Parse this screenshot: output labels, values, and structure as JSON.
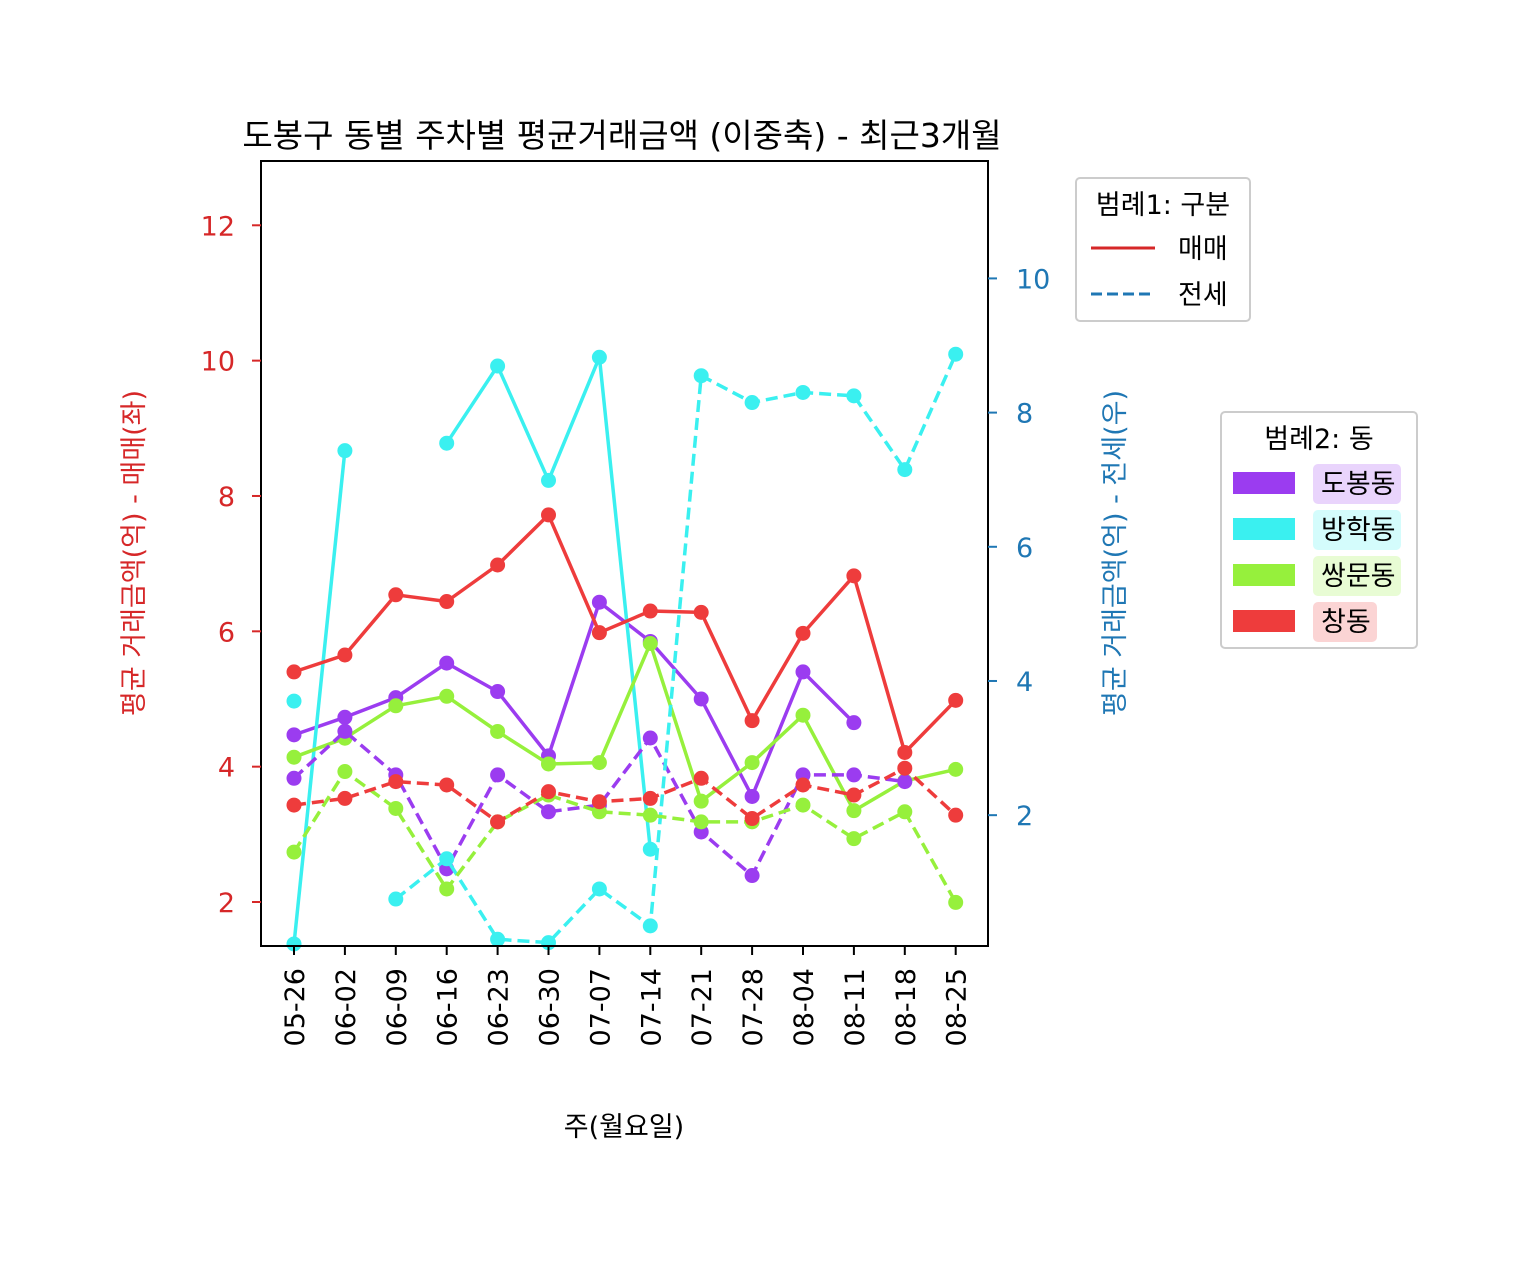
{
  "chart_data": {
    "type": "line",
    "title": "도봉구 동별 주차별 평균거래금액 (이중축) - 최근3개월",
    "xlabel": "주(월요일)",
    "ylabel_left": "평균 거래금액(억) - 매매(좌)",
    "ylabel_right": "평균 거래금액(억) - 전세(우)",
    "categories": [
      "05-26",
      "06-02",
      "06-09",
      "06-16",
      "06-23",
      "06-30",
      "07-07",
      "07-14",
      "07-21",
      "07-28",
      "08-04",
      "08-11",
      "08-18",
      "08-25"
    ],
    "ylim_left": [
      1.35,
      12.95
    ],
    "ylim_right": [
      0.05,
      11.75
    ],
    "yticks_left": [
      2,
      4,
      6,
      8,
      10,
      12
    ],
    "yticks_right": [
      2,
      4,
      6,
      8,
      10
    ],
    "left_axis_color": "#d62728",
    "right_axis_color": "#1f77b4",
    "grid": false,
    "legend1": {
      "title": "범례1: 구분",
      "placement": "upper right, outside plot",
      "entries": [
        {
          "label": "매매",
          "style": "solid",
          "color": "#d62728"
        },
        {
          "label": "전세",
          "style": "dashed",
          "color": "#1f77b4"
        }
      ]
    },
    "legend2": {
      "title": "범례2: 동",
      "placement": "right, outside plot",
      "entries": [
        {
          "label": "도봉동",
          "color": "#9b3cf0"
        },
        {
          "label": "방학동",
          "color": "#3af0f0"
        },
        {
          "label": "쌍문동",
          "color": "#96f03c"
        },
        {
          "label": "창동",
          "color": "#ee3c3c"
        }
      ]
    },
    "series": [
      {
        "dong": "도봉동",
        "kind": "매매",
        "axis": "left",
        "color": "#9b3cf0",
        "values": [
          4.47,
          4.73,
          5.02,
          5.53,
          5.11,
          4.16,
          6.43,
          5.85,
          5.0,
          3.56,
          5.4,
          4.65,
          null,
          null
        ]
      },
      {
        "dong": "방학동",
        "kind": "매매",
        "axis": "left",
        "color": "#3af0f0",
        "values": [
          1.38,
          8.67,
          null,
          8.78,
          9.92,
          8.23,
          10.05,
          2.78,
          null,
          null,
          null,
          null,
          null,
          null
        ]
      },
      {
        "dong": "쌍문동",
        "kind": "매매",
        "axis": "left",
        "color": "#96f03c",
        "values": [
          4.14,
          4.42,
          4.9,
          5.04,
          4.52,
          4.04,
          4.06,
          5.82,
          3.49,
          4.06,
          4.76,
          3.35,
          3.79,
          3.96
        ]
      },
      {
        "dong": "창동",
        "kind": "매매",
        "axis": "left",
        "color": "#ee3c3c",
        "values": [
          5.4,
          5.65,
          6.54,
          6.44,
          6.98,
          7.72,
          5.98,
          6.3,
          6.28,
          4.68,
          5.97,
          6.82,
          4.21,
          4.98
        ]
      },
      {
        "dong": "도봉동",
        "kind": "전세",
        "axis": "right",
        "color": "#9b3cf0",
        "values": [
          2.55,
          3.25,
          2.6,
          1.2,
          2.6,
          2.05,
          2.15,
          3.15,
          1.75,
          1.1,
          2.6,
          2.6,
          2.5,
          null
        ]
      },
      {
        "dong": "방학동",
        "kind": "전세",
        "axis": "right",
        "color": "#3af0f0",
        "values": [
          3.7,
          null,
          0.75,
          1.35,
          0.15,
          0.1,
          0.9,
          0.35,
          8.55,
          8.15,
          8.3,
          8.25,
          7.15,
          8.87
        ]
      },
      {
        "dong": "쌍문동",
        "kind": "전세",
        "axis": "right",
        "color": "#96f03c",
        "values": [
          1.45,
          2.65,
          2.1,
          0.9,
          1.9,
          2.3,
          2.05,
          2.0,
          1.9,
          1.9,
          2.15,
          1.65,
          2.05,
          0.7
        ]
      },
      {
        "dong": "창동",
        "kind": "전세",
        "axis": "right",
        "color": "#ee3c3c",
        "values": [
          2.15,
          2.25,
          2.5,
          2.45,
          1.9,
          2.35,
          2.2,
          2.25,
          2.55,
          1.95,
          2.45,
          2.3,
          2.7,
          2.0
        ]
      }
    ]
  }
}
